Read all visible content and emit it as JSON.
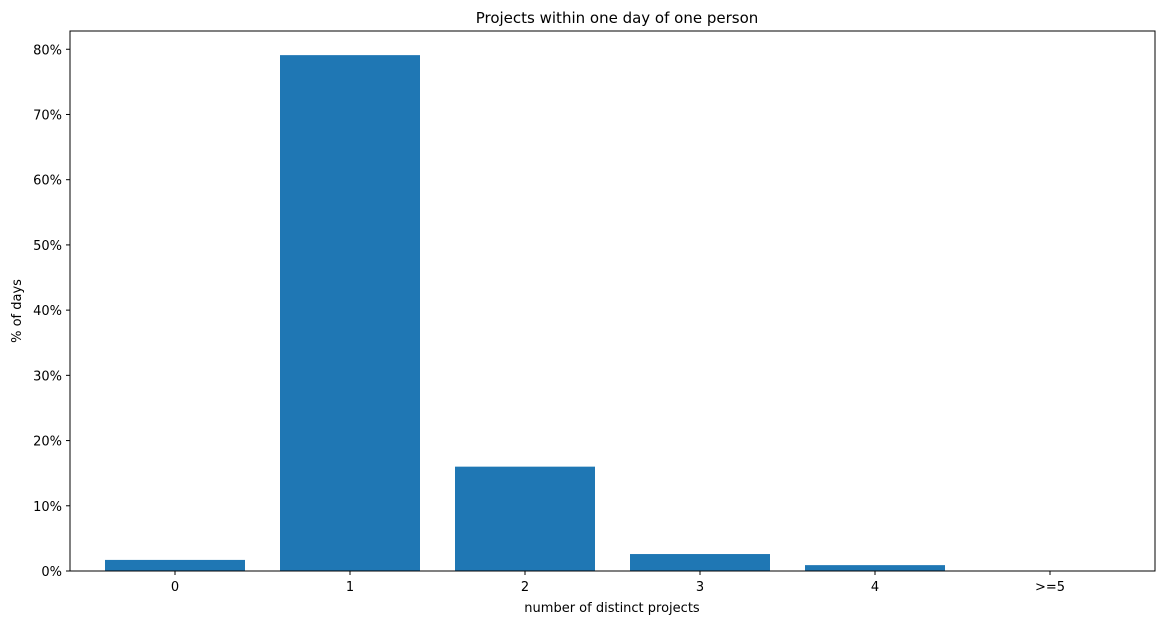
{
  "chart_data": {
    "type": "bar",
    "title": "Projects within one day of one person",
    "xlabel": "number of distinct projects",
    "ylabel": "% of days",
    "categories": [
      "0",
      "1",
      "2",
      "3",
      "4",
      ">=5"
    ],
    "values": [
      1.7,
      79.1,
      16.0,
      2.6,
      0.9,
      0.05
    ],
    "ylim": [
      0,
      82.8
    ],
    "yticks": [
      0,
      10,
      20,
      30,
      40,
      50,
      60,
      70,
      80
    ],
    "ytick_labels": [
      "0%",
      "10%",
      "20%",
      "30%",
      "40%",
      "50%",
      "60%",
      "70%",
      "80%"
    ],
    "bar_color": "#1f77b4",
    "grid": false,
    "legend": "none"
  }
}
